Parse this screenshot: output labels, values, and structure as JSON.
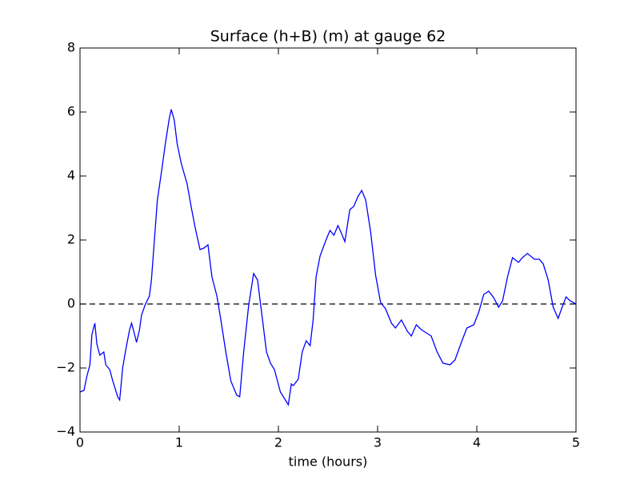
{
  "chart_data": {
    "type": "line",
    "title": "Surface (h+B) (m) at gauge 62",
    "x_label": "time (hours)",
    "x": [
      0,
      0.04,
      0.07,
      0.1,
      0.12,
      0.15,
      0.17,
      0.2,
      0.22,
      0.24,
      0.26,
      0.3,
      0.33,
      0.38,
      0.4,
      0.43,
      0.46,
      0.5,
      0.52,
      0.55,
      0.57,
      0.6,
      0.62,
      0.66,
      0.7,
      0.72,
      0.75,
      0.78,
      0.82,
      0.86,
      0.9,
      0.92,
      0.95,
      0.98,
      1.02,
      1.08,
      1.12,
      1.16,
      1.21,
      1.25,
      1.29,
      1.33,
      1.38,
      1.42,
      1.47,
      1.52,
      1.58,
      1.61,
      1.65,
      1.7,
      1.75,
      1.79,
      1.83,
      1.88,
      1.92,
      1.96,
      2.02,
      2.1,
      2.13,
      2.15,
      2.2,
      2.24,
      2.28,
      2.32,
      2.35,
      2.38,
      2.42,
      2.48,
      2.52,
      2.56,
      2.6,
      2.63,
      2.67,
      2.72,
      2.76,
      2.8,
      2.84,
      2.88,
      2.93,
      2.98,
      3.03,
      3.08,
      3.14,
      3.18,
      3.24,
      3.3,
      3.34,
      3.39,
      3.44,
      3.49,
      3.54,
      3.6,
      3.66,
      3.73,
      3.78,
      3.85,
      3.9,
      3.97,
      4.02,
      4.07,
      4.12,
      4.17,
      4.22,
      4.26,
      4.31,
      4.36,
      4.42,
      4.46,
      4.51,
      4.58,
      4.63,
      4.67,
      4.72,
      4.77,
      4.82,
      4.86,
      4.9,
      4.94,
      5.0
    ],
    "series": [
      {
        "color": "#0000ff",
        "values": [
          -2.75,
          -2.7,
          -2.25,
          -1.9,
          -0.95,
          -0.6,
          -1.25,
          -1.6,
          -1.55,
          -1.5,
          -1.9,
          -2.05,
          -2.4,
          -2.9,
          -3.0,
          -2.0,
          -1.45,
          -0.8,
          -0.6,
          -0.95,
          -1.2,
          -0.8,
          -0.35,
          0.0,
          0.25,
          0.75,
          2.0,
          3.25,
          4.1,
          5.0,
          5.8,
          6.08,
          5.75,
          5.0,
          4.4,
          3.75,
          3.05,
          2.4,
          1.7,
          1.75,
          1.85,
          0.85,
          0.25,
          -0.5,
          -1.5,
          -2.4,
          -2.85,
          -2.9,
          -1.5,
          -0.05,
          0.95,
          0.75,
          -0.25,
          -1.5,
          -1.85,
          -2.05,
          -2.75,
          -3.15,
          -2.5,
          -2.55,
          -2.35,
          -1.5,
          -1.15,
          -1.3,
          -0.5,
          0.85,
          1.5,
          2.0,
          2.3,
          2.15,
          2.45,
          2.25,
          1.95,
          2.95,
          3.05,
          3.35,
          3.55,
          3.25,
          2.25,
          0.9,
          0.05,
          -0.15,
          -0.6,
          -0.75,
          -0.5,
          -0.85,
          -1.0,
          -0.65,
          -0.8,
          -0.9,
          -1.0,
          -1.5,
          -1.85,
          -1.9,
          -1.75,
          -1.15,
          -0.75,
          -0.65,
          -0.25,
          0.3,
          0.4,
          0.2,
          -0.1,
          0.1,
          0.85,
          1.45,
          1.3,
          1.45,
          1.58,
          1.4,
          1.4,
          1.25,
          0.75,
          -0.1,
          -0.45,
          -0.1,
          0.22,
          0.1,
          0.0
        ]
      }
    ],
    "reference_line": 0,
    "reference_color": "#000000",
    "xlim": [
      0,
      5
    ],
    "xticks": [
      0,
      1,
      2,
      3,
      4,
      5
    ],
    "ylim": [
      -4,
      8
    ],
    "yticks": [
      {
        "value": -4,
        "label": "−4"
      },
      {
        "value": -2,
        "label": "−2"
      },
      0,
      2,
      4,
      6,
      8
    ],
    "grid": false
  }
}
